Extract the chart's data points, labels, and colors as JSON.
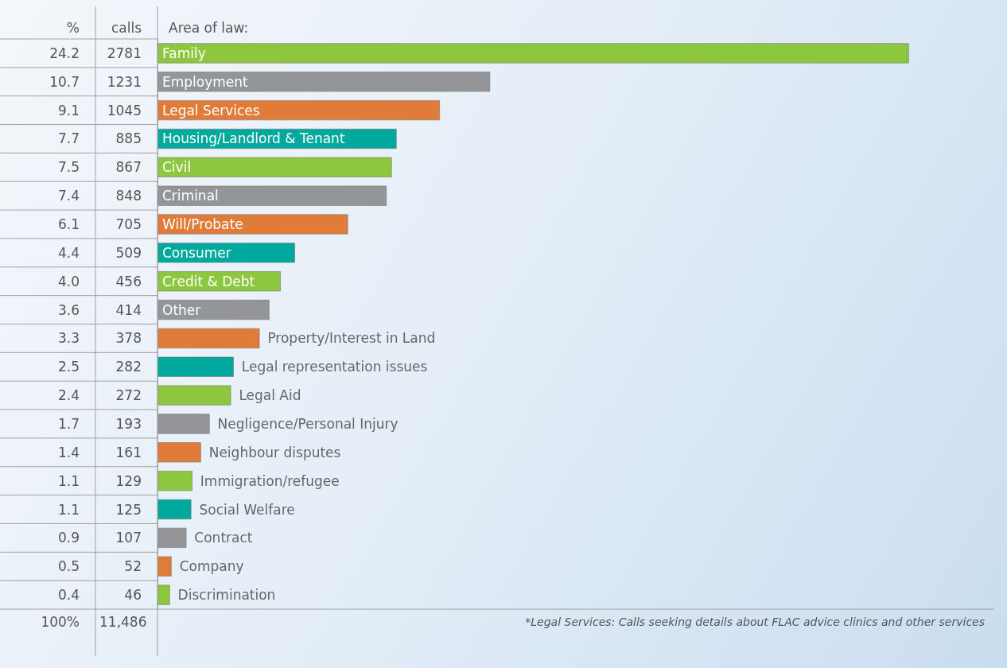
{
  "chart_data": {
    "type": "bar",
    "orientation": "horizontal",
    "ylabel": "Area of law:",
    "categories": [
      "Family",
      "Employment",
      "Legal Services",
      "Housing/Landlord & Tenant",
      "Civil",
      "Criminal",
      "Will/Probate",
      "Consumer",
      "Credit & Debt",
      "Other",
      "Property/Interest in Land",
      "Legal representation issues",
      "Legal Aid",
      "Negligence/Personal Injury",
      "Neighbour disputes",
      "Immigration/refugee",
      "Social Welfare",
      "Contract",
      "Company",
      "Discrimination"
    ],
    "values": [
      2781,
      1231,
      1045,
      885,
      867,
      848,
      705,
      509,
      456,
      414,
      378,
      282,
      272,
      193,
      161,
      129,
      125,
      107,
      52,
      46
    ],
    "colors": [
      "#8dc63f",
      "#939598",
      "#e07b39",
      "#00a99d",
      "#8dc63f",
      "#939598",
      "#e07b39",
      "#00a99d",
      "#8dc63f",
      "#939598",
      "#e07b39",
      "#00a99d",
      "#8dc63f",
      "#939598",
      "#e07b39",
      "#8dc63f",
      "#00a99d",
      "#939598",
      "#e07b39",
      "#8dc63f"
    ],
    "data_labels": true,
    "annotations": [
      "%",
      "calls",
      "100%",
      "11,486",
      "*Legal Services: Calls seeking details about FLAC advice clinics and other services",
      "24.2",
      "10.7",
      "9.1",
      "7.7",
      "7.5",
      "7.4",
      "6.1",
      "4.4",
      "4.0",
      "3.6",
      "3.3",
      "2.5",
      "2.4",
      "1.7",
      "1.4",
      "1.1",
      "1.1",
      "0.9",
      "0.5",
      "0.4"
    ]
  }
}
